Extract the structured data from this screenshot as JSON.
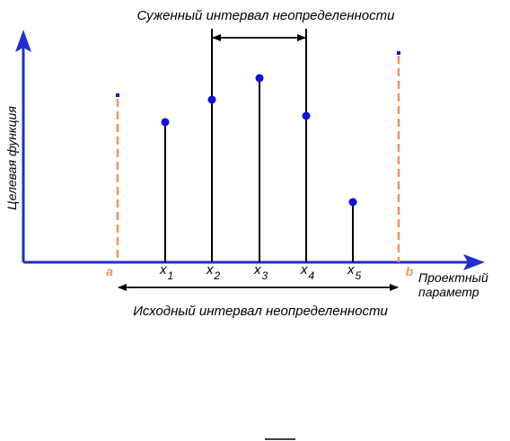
{
  "diagram": {
    "top_caption": "Суженный интервал неопределенности",
    "bottom_caption": "Исходный интервал неопределенности",
    "y_axis_label": "Целевая функция",
    "x_axis_label_line1": "Проектный",
    "x_axis_label_line2": "параметр",
    "left_bound": "a",
    "right_bound": "b",
    "points": [
      {
        "name": "x",
        "sub": "1"
      },
      {
        "name": "x",
        "sub": "2"
      },
      {
        "name": "x",
        "sub": "3"
      },
      {
        "name": "x",
        "sub": "4"
      },
      {
        "name": "x",
        "sub": "5"
      }
    ]
  },
  "colors": {
    "axis": "#1f2fd0",
    "bound_line": "#f4935a",
    "marker": "#1010e0",
    "stem": "#000000"
  }
}
